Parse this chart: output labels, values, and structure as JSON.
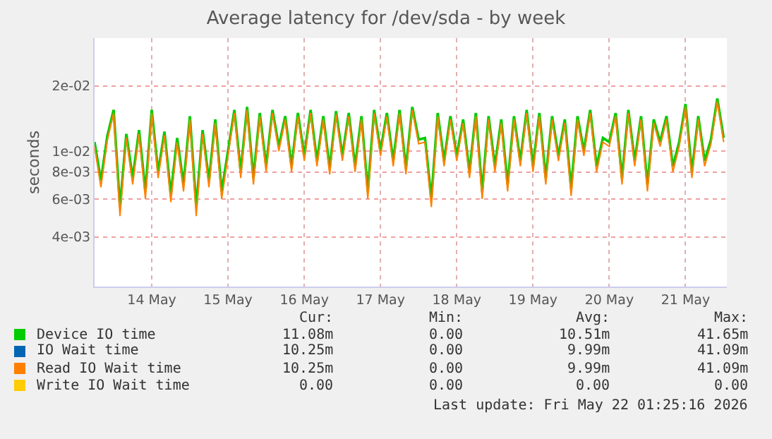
{
  "chart_data": {
    "type": "line",
    "title": "Average latency for /dev/sda - by week",
    "ylabel": "seconds",
    "log": "y",
    "grid": true,
    "legend": "bottom",
    "xlim": [
      "2026-05-13T18:00",
      "2026-05-22T01:00"
    ],
    "xticks": [
      {
        "value": "2026-05-14T12:00",
        "label": "14 May"
      },
      {
        "value": "2026-05-15T12:00",
        "label": "15 May"
      },
      {
        "value": "2026-05-16T12:00",
        "label": "16 May"
      },
      {
        "value": "2026-05-17T12:00",
        "label": "17 May"
      },
      {
        "value": "2026-05-18T12:00",
        "label": "18 May"
      },
      {
        "value": "2026-05-19T12:00",
        "label": "19 May"
      },
      {
        "value": "2026-05-20T12:00",
        "label": "20 May"
      },
      {
        "value": "2026-05-21T12:00",
        "label": "21 May"
      }
    ],
    "ylim": [
      0.00236,
      0.0333
    ],
    "yticks": [
      {
        "value": 0.004,
        "label": "4e-03"
      },
      {
        "value": 0.006,
        "label": "6e-03"
      },
      {
        "value": 0.008,
        "label": "8e-03"
      },
      {
        "value": 0.01,
        "label": "1e-02"
      },
      {
        "value": 0.02,
        "label": "2e-02"
      }
    ],
    "x": [
      "2026-05-13T18:00",
      "2026-05-13T20:00",
      "2026-05-13T22:00",
      "2026-05-14T00:00",
      "2026-05-14T02:00",
      "2026-05-14T04:00",
      "2026-05-14T06:00",
      "2026-05-14T08:00",
      "2026-05-14T10:00",
      "2026-05-14T12:00",
      "2026-05-14T14:00",
      "2026-05-14T16:00",
      "2026-05-14T18:00",
      "2026-05-14T20:00",
      "2026-05-14T22:00",
      "2026-05-15T00:00",
      "2026-05-15T02:00",
      "2026-05-15T04:00",
      "2026-05-15T06:00",
      "2026-05-15T08:00",
      "2026-05-15T10:00",
      "2026-05-15T12:00",
      "2026-05-15T14:00",
      "2026-05-15T16:00",
      "2026-05-15T18:00",
      "2026-05-15T20:00",
      "2026-05-15T22:00",
      "2026-05-16T00:00",
      "2026-05-16T02:00",
      "2026-05-16T04:00",
      "2026-05-16T06:00",
      "2026-05-16T08:00",
      "2026-05-16T10:00",
      "2026-05-16T12:00",
      "2026-05-16T14:00",
      "2026-05-16T16:00",
      "2026-05-16T18:00",
      "2026-05-16T20:00",
      "2026-05-16T22:00",
      "2026-05-17T00:00",
      "2026-05-17T02:00",
      "2026-05-17T04:00",
      "2026-05-17T06:00",
      "2026-05-17T08:00",
      "2026-05-17T10:00",
      "2026-05-17T12:00",
      "2026-05-17T14:00",
      "2026-05-17T16:00",
      "2026-05-17T18:00",
      "2026-05-17T20:00",
      "2026-05-17T22:00",
      "2026-05-18T00:00",
      "2026-05-18T02:00",
      "2026-05-18T04:00",
      "2026-05-18T06:00",
      "2026-05-18T08:00",
      "2026-05-18T10:00",
      "2026-05-18T12:00",
      "2026-05-18T14:00",
      "2026-05-18T16:00",
      "2026-05-18T18:00",
      "2026-05-18T20:00",
      "2026-05-18T22:00",
      "2026-05-19T00:00",
      "2026-05-19T02:00",
      "2026-05-19T04:00",
      "2026-05-19T06:00",
      "2026-05-19T08:00",
      "2026-05-19T10:00",
      "2026-05-19T12:00",
      "2026-05-19T14:00",
      "2026-05-19T16:00",
      "2026-05-19T18:00",
      "2026-05-19T20:00",
      "2026-05-19T22:00",
      "2026-05-20T00:00",
      "2026-05-20T02:00",
      "2026-05-20T04:00",
      "2026-05-20T06:00",
      "2026-05-20T08:00",
      "2026-05-20T10:00",
      "2026-05-20T12:00",
      "2026-05-20T14:00",
      "2026-05-20T16:00",
      "2026-05-20T18:00",
      "2026-05-20T20:00",
      "2026-05-20T22:00",
      "2026-05-21T00:00",
      "2026-05-21T02:00",
      "2026-05-21T04:00",
      "2026-05-21T06:00",
      "2026-05-21T08:00",
      "2026-05-21T10:00",
      "2026-05-21T12:00",
      "2026-05-21T14:00",
      "2026-05-21T16:00",
      "2026-05-21T18:00",
      "2026-05-21T20:00",
      "2026-05-21T22:00",
      "2026-05-22T00:00"
    ],
    "series": [
      {
        "name": "Device IO time",
        "color": "#00cc00",
        "values": [
          0.011,
          0.0073,
          0.0117,
          0.0155,
          0.0055,
          0.012,
          0.0075,
          0.0125,
          0.0065,
          0.0155,
          0.008,
          0.0123,
          0.0063,
          0.0115,
          0.007,
          0.0145,
          0.0055,
          0.0125,
          0.0073,
          0.014,
          0.0065,
          0.01,
          0.0155,
          0.008,
          0.016,
          0.0075,
          0.015,
          0.0085,
          0.0155,
          0.0105,
          0.0145,
          0.0085,
          0.015,
          0.0095,
          0.0155,
          0.009,
          0.0145,
          0.0083,
          0.0153,
          0.0095,
          0.015,
          0.0085,
          0.0145,
          0.0065,
          0.0155,
          0.01,
          0.015,
          0.009,
          0.0155,
          0.0083,
          0.016,
          0.0113,
          0.0115,
          0.006,
          0.015,
          0.009,
          0.0145,
          0.0095,
          0.014,
          0.008,
          0.015,
          0.0065,
          0.0145,
          0.0085,
          0.014,
          0.007,
          0.0145,
          0.009,
          0.0155,
          0.0085,
          0.015,
          0.0075,
          0.0145,
          0.0095,
          0.014,
          0.0067,
          0.0145,
          0.01,
          0.0155,
          0.0085,
          0.0115,
          0.011,
          0.015,
          0.0075,
          0.0155,
          0.009,
          0.0145,
          0.007,
          0.014,
          0.011,
          0.0145,
          0.0085,
          0.011,
          0.0165,
          0.008,
          0.0145,
          0.009,
          0.0113,
          0.0175,
          0.0115
        ]
      },
      {
        "name": "IO Wait time",
        "color": "#0066b3",
        "values": [
          null,
          null,
          null,
          null,
          null,
          null,
          null,
          null,
          null,
          null,
          null,
          null,
          null,
          null,
          null,
          null,
          null,
          null,
          null,
          null,
          null,
          null,
          null,
          null,
          null,
          null,
          null,
          null,
          null,
          null,
          null,
          null,
          null,
          null,
          null,
          null,
          null,
          null,
          null,
          null,
          null,
          null,
          null,
          null,
          null,
          null,
          null,
          null,
          null,
          null,
          null,
          null,
          null,
          null,
          null,
          null,
          null,
          null,
          null,
          null,
          null,
          null,
          null,
          null,
          null,
          null,
          null,
          null,
          null,
          null,
          null,
          null,
          null,
          null,
          null,
          null,
          null,
          null,
          null,
          null,
          null,
          null,
          null,
          null,
          null,
          null,
          null,
          null,
          null,
          null,
          null,
          null,
          null,
          null,
          null,
          null,
          null,
          null,
          null,
          null
        ]
      },
      {
        "name": "Read IO Wait time",
        "color": "#ff8000",
        "values": [
          0.0105,
          0.0068,
          0.0112,
          0.015,
          0.005,
          0.0115,
          0.007,
          0.012,
          0.006,
          0.015,
          0.0075,
          0.0118,
          0.0058,
          0.011,
          0.0065,
          0.014,
          0.005,
          0.012,
          0.0068,
          0.0135,
          0.006,
          0.0095,
          0.015,
          0.0075,
          0.0155,
          0.007,
          0.0145,
          0.008,
          0.015,
          0.01,
          0.014,
          0.008,
          0.0145,
          0.009,
          0.015,
          0.0085,
          0.014,
          0.0078,
          0.0148,
          0.009,
          0.0145,
          0.008,
          0.014,
          0.006,
          0.015,
          0.0095,
          0.0145,
          0.0085,
          0.015,
          0.0078,
          0.0155,
          0.0108,
          0.011,
          0.0055,
          0.0145,
          0.0085,
          0.014,
          0.009,
          0.0135,
          0.0075,
          0.0145,
          0.006,
          0.014,
          0.008,
          0.0135,
          0.0065,
          0.014,
          0.0085,
          0.015,
          0.008,
          0.0145,
          0.007,
          0.014,
          0.009,
          0.0135,
          0.0062,
          0.014,
          0.0095,
          0.015,
          0.008,
          0.011,
          0.0105,
          0.0145,
          0.007,
          0.015,
          0.0085,
          0.014,
          0.0065,
          0.0135,
          0.0105,
          0.014,
          0.008,
          0.0105,
          0.016,
          0.0075,
          0.014,
          0.0085,
          0.0108,
          0.017,
          0.011
        ]
      },
      {
        "name": "Write IO Wait time",
        "color": "#ffcc00",
        "values": [
          null,
          null,
          null,
          null,
          null,
          null,
          null,
          null,
          null,
          null,
          null,
          null,
          null,
          null,
          null,
          null,
          null,
          null,
          null,
          null,
          null,
          null,
          null,
          null,
          null,
          null,
          null,
          null,
          null,
          null,
          null,
          null,
          null,
          null,
          null,
          null,
          null,
          null,
          null,
          null,
          null,
          null,
          null,
          null,
          null,
          null,
          null,
          null,
          null,
          null,
          null,
          null,
          null,
          null,
          null,
          null,
          null,
          null,
          null,
          null,
          null,
          null,
          null,
          null,
          null,
          null,
          null,
          null,
          null,
          null,
          null,
          null,
          null,
          null,
          null,
          null,
          null,
          null,
          null,
          null,
          null,
          null,
          null,
          null,
          null,
          null,
          null,
          null,
          null,
          null,
          null,
          null,
          null,
          null,
          null,
          null,
          null,
          null,
          null,
          null
        ]
      }
    ],
    "annotations": [
      "Cur:",
      "Min:",
      "Avg:",
      "Max:",
      "11.08m",
      "0.00",
      "10.51m",
      "41.65m",
      "10.25m",
      "0.00",
      "9.99m",
      "41.09m",
      "10.25m",
      "0.00",
      "9.99m",
      "41.09m",
      "0.00",
      "0.00",
      "0.00",
      "0.00",
      "Last update: Fri May 22 01:25:16 2026"
    ]
  }
}
